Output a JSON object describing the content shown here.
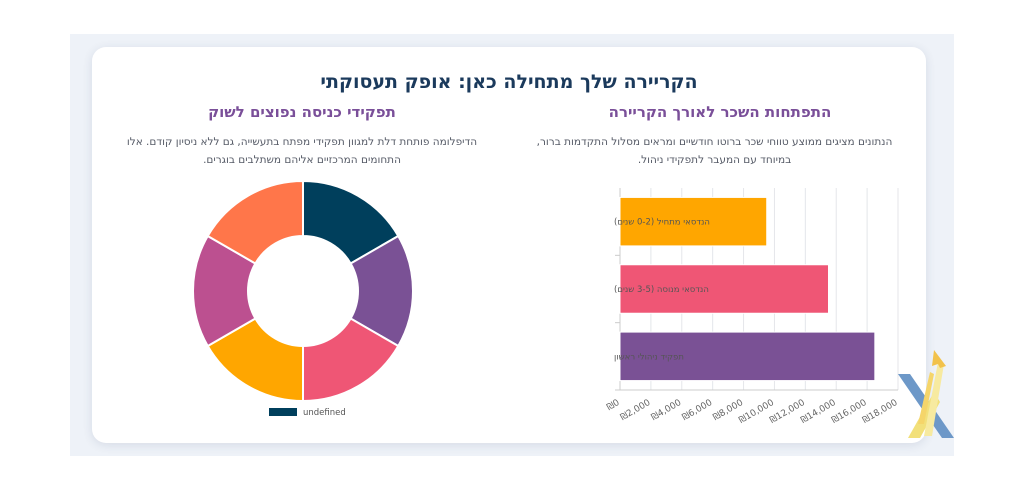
{
  "page": {
    "title": "הקריירה שלך מתחילה כאן: אופק תעסוקתי"
  },
  "salary_section": {
    "title": "התפתחות השכר לאורך הקריירה",
    "description": "הנתונים מציגים ממוצע טווחי שכר ברוטו חודשיים ומראים מסלול התקדמות ברור, במיוחד עם המעבר לתפקידי ניהול."
  },
  "roles_section": {
    "title": "תפקידי כניסה נפוצים לשוק",
    "description": "הדיפלומה פותחת דלת למגוון תפקידי מפתח בתעשייה, גם ללא ניסיון קודם. אלו התחומים המרכזיים אליהם משתלבים בוגרים."
  },
  "chart_data": [
    {
      "type": "bar",
      "orientation": "horizontal",
      "categories": [
        "הנדסאי מתחיל (0-2 שנים)",
        "הנדסאי מנוסה (3-5 שנים)",
        "תפקיד ניהולי ראשון"
      ],
      "values": [
        9500,
        13500,
        16500
      ],
      "colors": [
        "#ffa600",
        "#ef5675",
        "#7a5195"
      ],
      "xlim": [
        0,
        18000
      ],
      "x_ticks": [
        "₪0",
        "₪2,000",
        "₪4,000",
        "₪6,000",
        "₪8,000",
        "₪10,000",
        "₪12,000",
        "₪14,000",
        "₪16,000",
        "₪18,000"
      ],
      "x_tick_values": [
        0,
        2000,
        4000,
        6000,
        8000,
        10000,
        12000,
        14000,
        16000,
        18000
      ],
      "grid": true
    },
    {
      "type": "pie",
      "donut": true,
      "values": [
        1,
        1,
        1,
        1,
        1,
        1
      ],
      "colors": [
        "#003f5c",
        "#7a5195",
        "#ef5675",
        "#ffa600",
        "#bc5090",
        "#ff764a"
      ],
      "legend": {
        "label": "undefined",
        "color": "#003f5c",
        "placement": "bottom"
      }
    }
  ]
}
